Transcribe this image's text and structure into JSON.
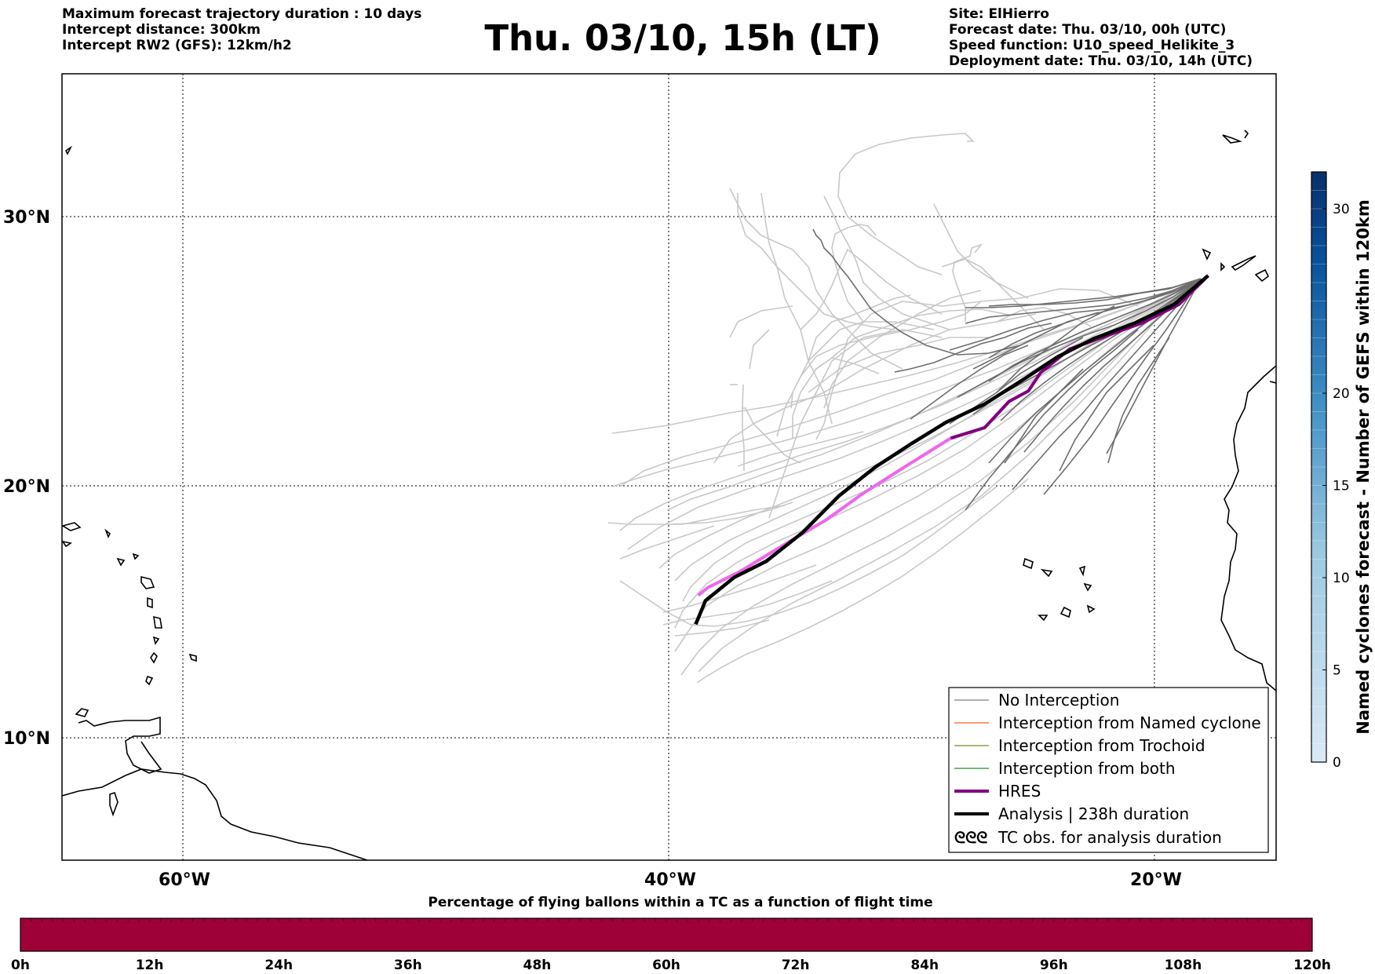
{
  "header": {
    "left_lines": [
      "Maximum forecast trajectory duration : 10 days",
      "Intercept distance: 300km",
      "Intercept RW2 (GFS):  12km/h2"
    ],
    "title": "Thu. 03/10, 15h (LT)",
    "right_lines": [
      "Site: ElHierro",
      "Forecast date: Thu. 03/10, 00h (UTC)",
      "Speed function: U10_speed_Helikite_3",
      "Deployment date: Thu. 03/10, 14h (UTC)"
    ]
  },
  "map": {
    "lat_labels": [
      "30°N",
      "20°N",
      "10°N"
    ],
    "lon_labels": [
      "60°W",
      "40°W",
      "20°W"
    ],
    "lat_values": [
      30,
      20,
      10
    ],
    "lon_values": [
      -60,
      -40,
      -20
    ],
    "extent": {
      "lon_min": -65,
      "lon_max": -15,
      "lat_min": 5.3,
      "lat_max": 35.3
    },
    "gridlines": "dotted",
    "legend": {
      "placement": "lower-right",
      "items": [
        {
          "label": "No Interception",
          "color": "#808080",
          "style": "thin-line"
        },
        {
          "label": "Interception from Named cyclone",
          "color": "#ff5a1e",
          "style": "thin-line"
        },
        {
          "label": "Interception from Trochoid",
          "color": "#7d8c1e",
          "style": "thin-line"
        },
        {
          "label": "Interception from both",
          "color": "#1e8c2d",
          "style": "thin-line"
        },
        {
          "label": "HRES",
          "color": "#800080",
          "style": "thick-line"
        },
        {
          "label": "Analysis | 238h duration",
          "color": "#000000",
          "style": "thick-line"
        },
        {
          "label": "TC obs. for analysis duration",
          "color": "#000000",
          "style": "symbol",
          "symbol": "ᘓᘓᘓ"
        }
      ]
    }
  },
  "colorbar_right": {
    "title": "Named cyclones forecast - Number of GEFS within 120km",
    "ticks": [
      "0",
      "5",
      "10",
      "15",
      "20",
      "30"
    ],
    "tick_values": [
      0,
      5,
      10,
      15,
      20,
      30
    ],
    "max": 32,
    "color_low": "#dbe9f6",
    "color_high": "#08306b"
  },
  "colorbar_bottom": {
    "title": "Percentage of flying ballons within a TC as a function of flight time",
    "ticks": [
      "0h",
      "12h",
      "24h",
      "36h",
      "48h",
      "60h",
      "72h",
      "84h",
      "96h",
      "108h",
      "120h"
    ],
    "fill_color": "#9e0038"
  },
  "chart_data": {
    "type": "line",
    "series": [
      {
        "name": "HRES",
        "color": "#800080",
        "points": [
          [
            -17.8,
            27.6
          ],
          [
            -19,
            26.5
          ],
          [
            -20.5,
            25.8
          ],
          [
            -22,
            25.3
          ],
          [
            -23.5,
            24.8
          ],
          [
            -24.7,
            23.9
          ],
          [
            -25.2,
            23.2
          ],
          [
            -26,
            22.8
          ],
          [
            -27,
            21.8
          ],
          [
            -28.4,
            21.4
          ],
          [
            -30.3,
            20.3
          ],
          [
            -32,
            19.3
          ],
          [
            -33.5,
            18.3
          ],
          [
            -35.5,
            17.2
          ],
          [
            -37.1,
            16.3
          ],
          [
            -38.4,
            15.7
          ],
          [
            -38.8,
            15.4
          ]
        ]
      },
      {
        "name": "Analysis | 238h duration",
        "color": "#000000",
        "points": [
          [
            -17.8,
            27.6
          ],
          [
            -19.2,
            26.5
          ],
          [
            -20.8,
            25.8
          ],
          [
            -22.5,
            25.2
          ],
          [
            -24,
            24.5
          ],
          [
            -25.3,
            23.7
          ],
          [
            -27,
            22.7
          ],
          [
            -28.6,
            22
          ],
          [
            -30,
            21.2
          ],
          [
            -31.5,
            20.3
          ],
          [
            -33,
            19.2
          ],
          [
            -34.5,
            17.8
          ],
          [
            -36,
            16.7
          ],
          [
            -37.3,
            16.1
          ],
          [
            -38.5,
            15.2
          ],
          [
            -38.9,
            14.3
          ]
        ]
      }
    ]
  }
}
